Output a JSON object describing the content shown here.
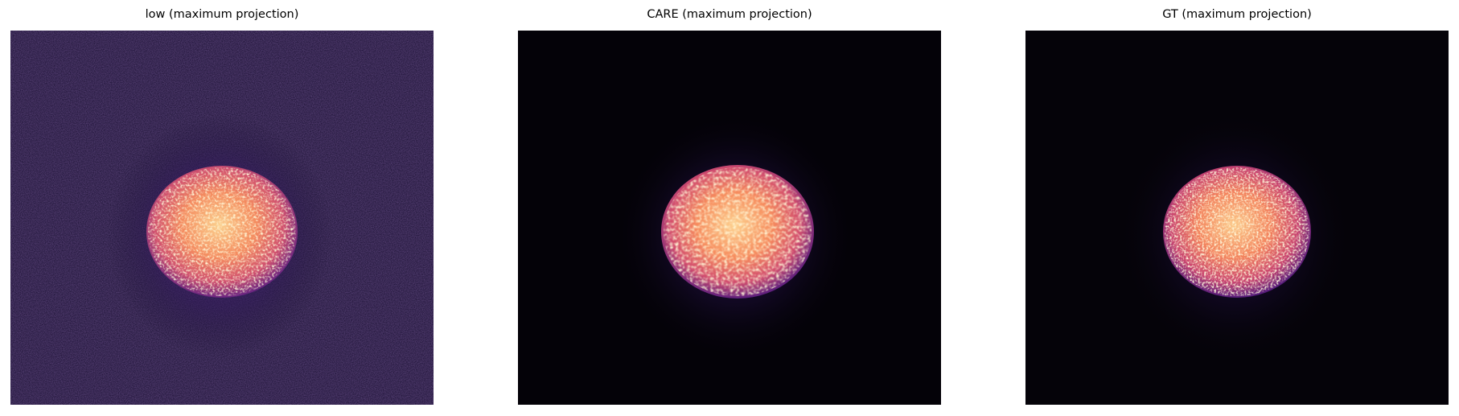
{
  "panels": [
    {
      "title": "low (maximum projection)",
      "colormap": "magma",
      "background_color": "#140b2c",
      "noise": "high"
    },
    {
      "title": "CARE (maximum projection)",
      "colormap": "magma",
      "background_color": "#040208",
      "noise": "low"
    },
    {
      "title": "GT (maximum projection)",
      "colormap": "magma",
      "background_color": "#050309",
      "noise": "low"
    }
  ],
  "colors": {
    "page_background": "#ffffff",
    "nucleus_core": "#fde4a5",
    "nucleus_mid": "#f58a5e",
    "nucleus_edge": "#b43c78",
    "halo": "#3b1d6e"
  }
}
